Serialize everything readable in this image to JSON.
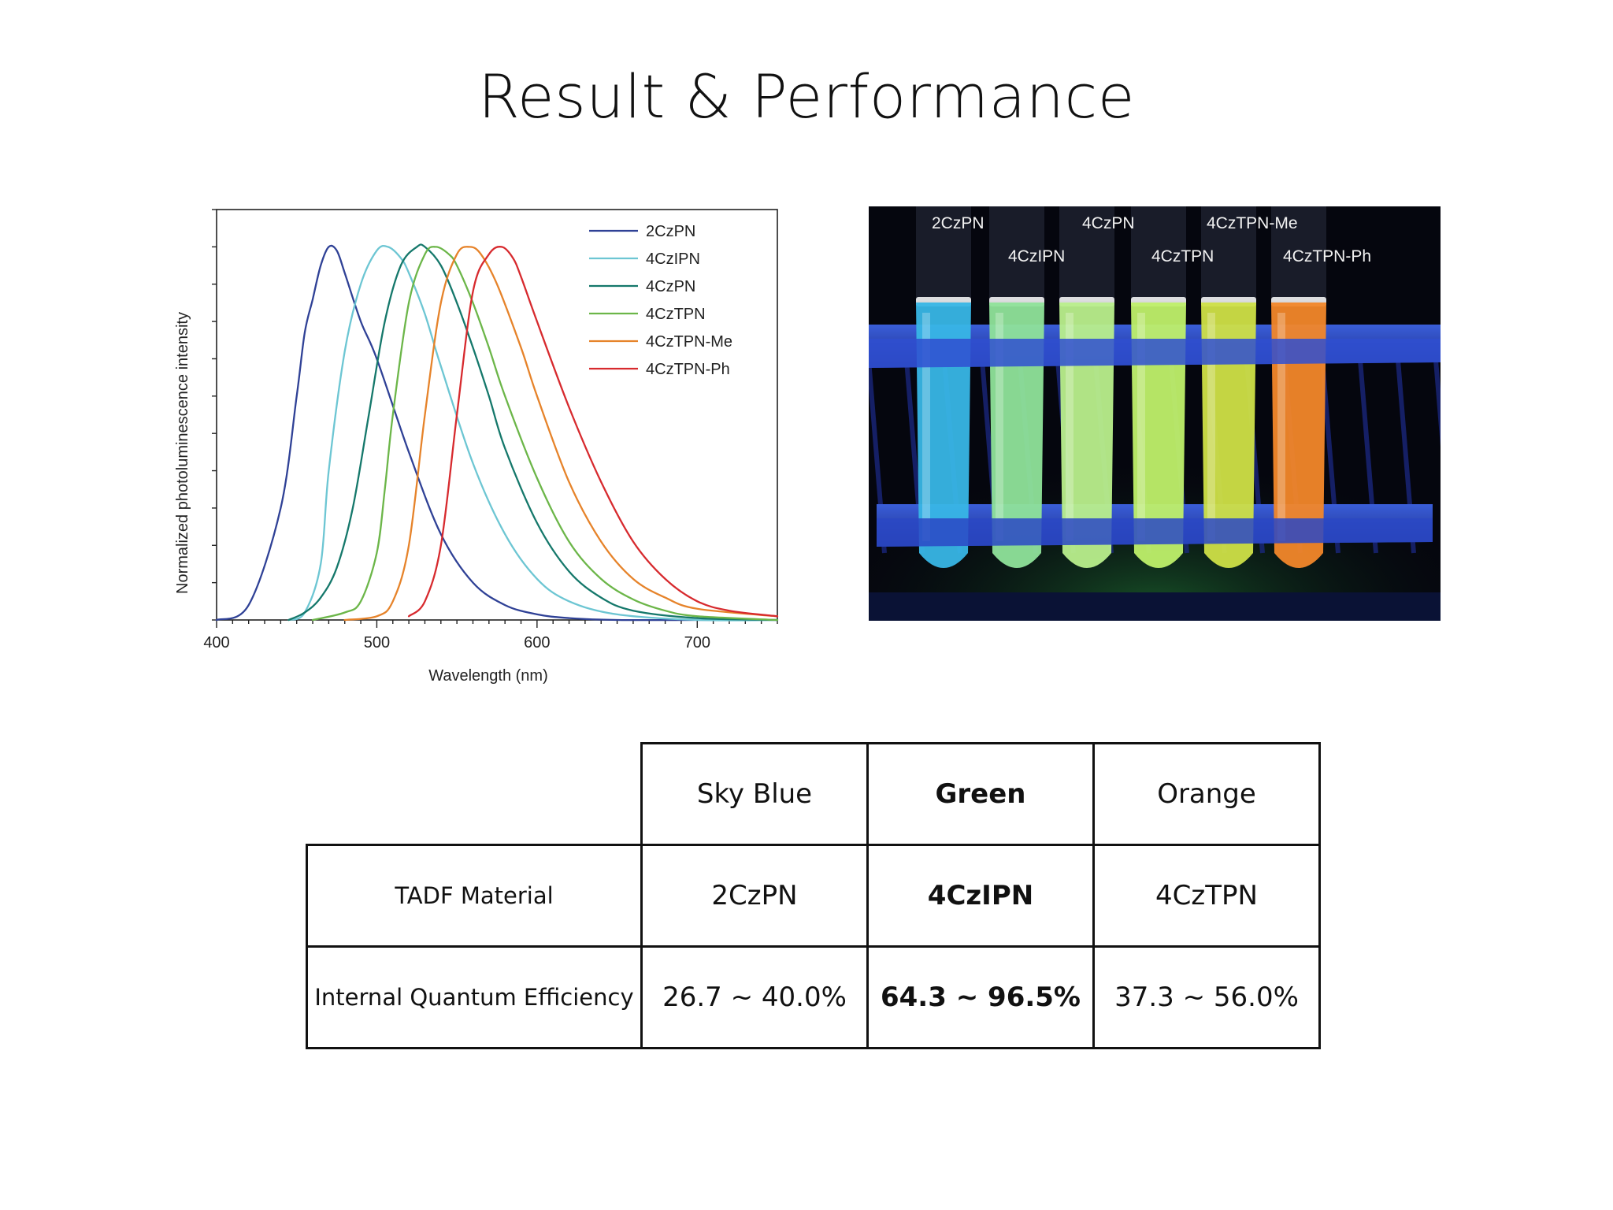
{
  "slide": {
    "title": "Result & Performance"
  },
  "chart_data": {
    "type": "line",
    "title": "",
    "xlabel": "Wavelength (nm)",
    "ylabel": "Normalized photoluminescence intensity",
    "xlim": [
      400,
      750
    ],
    "ylim": [
      0,
      1.1
    ],
    "xticks": [
      400,
      500,
      600,
      700
    ],
    "grid": false,
    "legend_position": "top-right",
    "series": [
      {
        "name": "2CzPN",
        "color": "#2f4196",
        "x": [
          400,
          420,
          440,
          450,
          455,
          460,
          465,
          470,
          475,
          480,
          490,
          500,
          520,
          540,
          560,
          580,
          600,
          620,
          650,
          700,
          750
        ],
        "y": [
          0.0,
          0.04,
          0.3,
          0.6,
          0.77,
          0.86,
          0.95,
          1.0,
          0.99,
          0.93,
          0.8,
          0.7,
          0.45,
          0.23,
          0.1,
          0.04,
          0.015,
          0.005,
          0.0,
          0.0,
          0.0
        ]
      },
      {
        "name": "4CzIPN",
        "color": "#6dc6d3",
        "x": [
          445,
          455,
          465,
          470,
          480,
          490,
          500,
          507,
          515,
          520,
          530,
          540,
          560,
          580,
          600,
          620,
          650,
          700,
          750
        ],
        "y": [
          0.0,
          0.02,
          0.15,
          0.4,
          0.72,
          0.9,
          0.99,
          1.0,
          0.97,
          0.93,
          0.82,
          0.68,
          0.42,
          0.23,
          0.11,
          0.05,
          0.015,
          0.0,
          0.0
        ]
      },
      {
        "name": "4CzPN",
        "color": "#15786b",
        "x": [
          445,
          455,
          465,
          475,
          485,
          495,
          505,
          515,
          525,
          530,
          540,
          550,
          560,
          570,
          580,
          600,
          620,
          640,
          660,
          700,
          750
        ],
        "y": [
          0.0,
          0.02,
          0.06,
          0.14,
          0.3,
          0.55,
          0.8,
          0.95,
          1.0,
          1.0,
          0.95,
          0.85,
          0.73,
          0.6,
          0.46,
          0.26,
          0.13,
          0.06,
          0.025,
          0.005,
          0.0
        ]
      },
      {
        "name": "4CzTPN",
        "color": "#6cb649",
        "x": [
          460,
          480,
          490,
          500,
          505,
          510,
          520,
          530,
          537,
          545,
          550,
          560,
          570,
          580,
          600,
          620,
          640,
          660,
          680,
          700,
          750
        ],
        "y": [
          0.0,
          0.02,
          0.05,
          0.18,
          0.35,
          0.55,
          0.85,
          0.98,
          1.0,
          0.98,
          0.95,
          0.85,
          0.73,
          0.6,
          0.38,
          0.21,
          0.11,
          0.055,
          0.025,
          0.01,
          0.0
        ]
      },
      {
        "name": "4CzTPN-Me",
        "color": "#e6832a",
        "x": [
          480,
          500,
          510,
          520,
          530,
          540,
          550,
          558,
          565,
          575,
          590,
          600,
          620,
          640,
          660,
          680,
          700,
          750
        ],
        "y": [
          0.0,
          0.01,
          0.05,
          0.2,
          0.55,
          0.85,
          0.98,
          1.0,
          0.98,
          0.9,
          0.73,
          0.6,
          0.37,
          0.21,
          0.11,
          0.06,
          0.03,
          0.01
        ]
      },
      {
        "name": "4CzTPN-Ph",
        "color": "#d72a2e",
        "x": [
          520,
          530,
          540,
          550,
          560,
          570,
          578,
          585,
          590,
          600,
          620,
          640,
          660,
          680,
          700,
          720,
          750
        ],
        "y": [
          0.01,
          0.05,
          0.2,
          0.55,
          0.88,
          0.98,
          1.0,
          0.97,
          0.92,
          0.8,
          0.57,
          0.37,
          0.21,
          0.11,
          0.05,
          0.025,
          0.01
        ]
      }
    ]
  },
  "photo": {
    "tubes": [
      {
        "label": "2CzPN",
        "color": "#38b6e6"
      },
      {
        "label": "4CzIPN",
        "color": "#8fe39a"
      },
      {
        "label": "4CzPN",
        "color": "#b9ef8c"
      },
      {
        "label": "4CzTPN",
        "color": "#bff06a"
      },
      {
        "label": "4CzTPN-Me",
        "color": "#cfe047"
      },
      {
        "label": "4CzTPN-Ph",
        "color": "#f2872a"
      }
    ]
  },
  "table": {
    "headers": [
      "Sky Blue",
      "Green",
      "Orange"
    ],
    "rows": [
      {
        "label": "TADF Material",
        "cells": [
          "2CzPN",
          "4CzIPN",
          "4CzTPN"
        ]
      },
      {
        "label": "Internal Quantum Efficiency",
        "cells": [
          "26.7 ~ 40.0%",
          "64.3 ~ 96.5%",
          "37.3 ~ 56.0%"
        ]
      }
    ]
  }
}
